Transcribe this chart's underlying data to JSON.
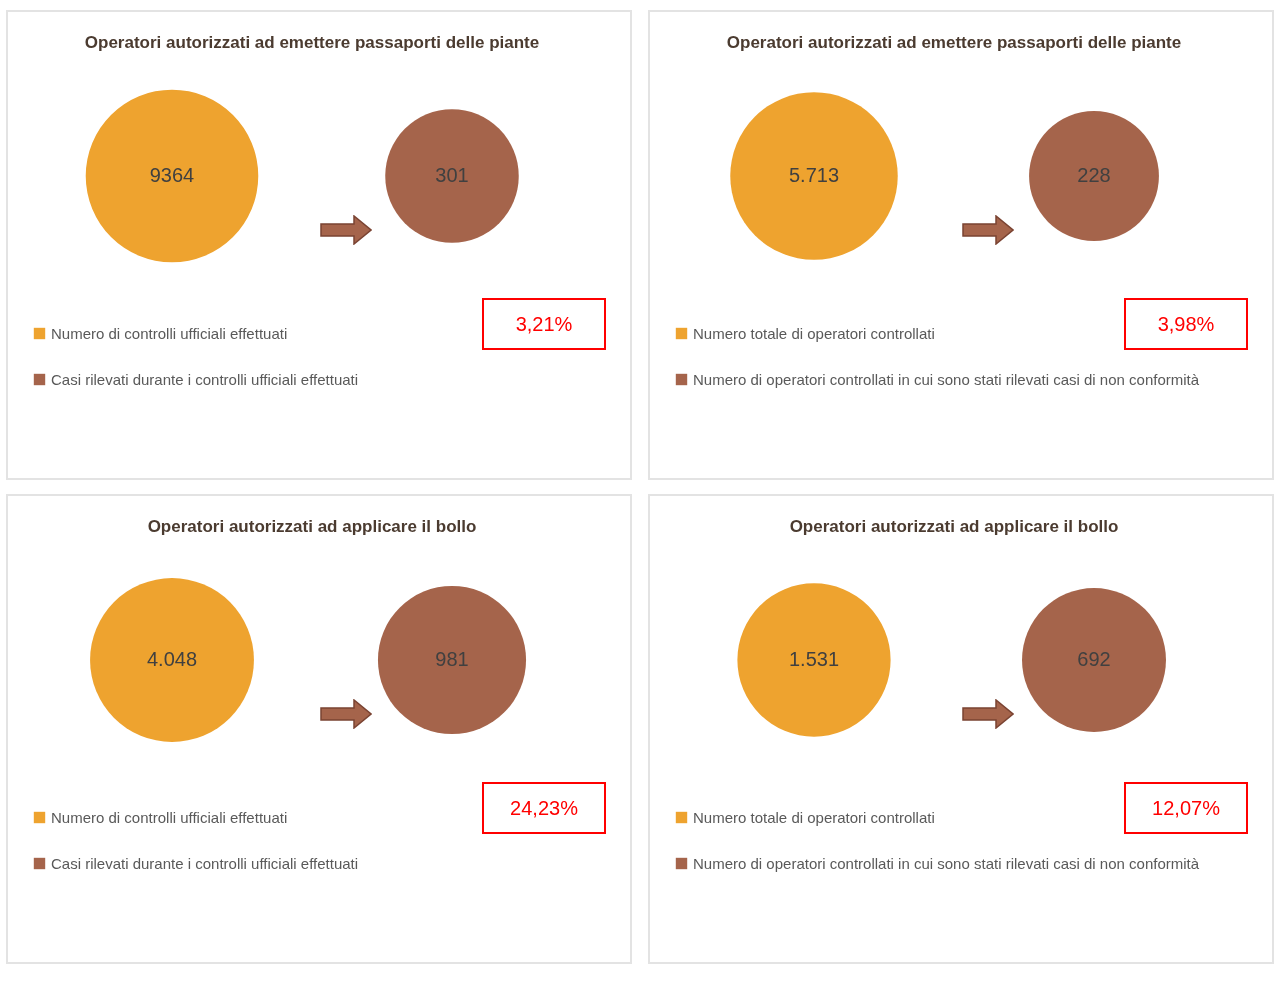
{
  "chart_data": [
    {
      "type": "other",
      "title": "Operatori autorizzati ad emettere passaporti delle piante",
      "categories": [
        "Numero di controlli ufficiali effettuati",
        "Casi rilevati durante i controlli ufficiali effettuati"
      ],
      "values": [
        9364,
        301
      ],
      "value_labels": [
        "9364",
        "301"
      ],
      "colors": [
        "#eea32f",
        "#a5644b"
      ],
      "annotations": [
        "3,21%"
      ]
    },
    {
      "type": "other",
      "title": "Operatori autorizzati ad emettere passaporti delle piante",
      "categories": [
        "Numero totale di operatori controllati",
        "Numero di operatori controllati in cui sono stati rilevati casi di non conformità"
      ],
      "values": [
        5713,
        228
      ],
      "value_labels": [
        "5.713",
        "228"
      ],
      "colors": [
        "#eea32f",
        "#a5644b"
      ],
      "annotations": [
        "3,98%"
      ]
    },
    {
      "type": "other",
      "title": "Operatori autorizzati ad applicare il bollo",
      "categories": [
        "Numero di controlli ufficiali effettuati",
        "Casi rilevati durante i controlli ufficiali effettuati"
      ],
      "values": [
        4048,
        981
      ],
      "value_labels": [
        "4.048",
        "981"
      ],
      "colors": [
        "#eea32f",
        "#a5644b"
      ],
      "annotations": [
        "24,23%"
      ]
    },
    {
      "type": "other",
      "title": "Operatori autorizzati ad applicare il bollo",
      "categories": [
        "Numero totale di operatori controllati",
        "Numero di operatori controllati in cui sono stati rilevati casi di non conformità"
      ],
      "values": [
        1531,
        692
      ],
      "value_labels": [
        "1.531",
        "692"
      ],
      "colors": [
        "#eea32f",
        "#a5644b"
      ],
      "annotations": [
        "12,07%"
      ]
    }
  ]
}
